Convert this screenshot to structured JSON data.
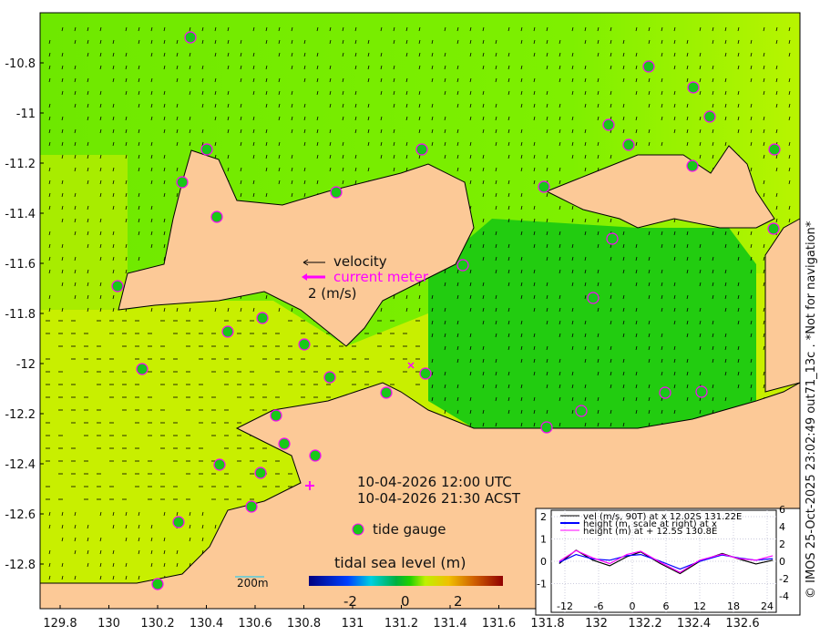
{
  "map": {
    "x_ticks": [
      "129.8",
      "130",
      "130.2",
      "130.4",
      "130.6",
      "130.8",
      "131",
      "131.2",
      "131.4",
      "131.6",
      "131.8",
      "132",
      "132.2",
      "132.4",
      "132.6"
    ],
    "y_ticks": [
      "-10.8",
      "-11",
      "-11.2",
      "-11.4",
      "-11.6",
      "-11.8",
      "-12",
      "-12.2",
      "-12.4",
      "-12.6",
      "-12.8"
    ],
    "colors": {
      "land": "#fcc997",
      "sea_high": "#c8f000",
      "sea_mid": "#6ee800",
      "sea_low": "#18c818",
      "marker": "#ff00ff"
    }
  },
  "legend": {
    "velocity": "velocity",
    "current_meter": "current meter",
    "scale": "2 (m/s)",
    "tide_gauge": "tide gauge",
    "scale_bar": "200m"
  },
  "timestamps": {
    "utc": "10-04-2026 12:00 UTC",
    "local": "10-04-2026 21:30 ACST"
  },
  "colorbar": {
    "title": "tidal sea level (m)",
    "ticks": [
      "-2",
      "0",
      "2"
    ],
    "range": [
      -3.6,
      3.6
    ]
  },
  "credit": "© IMOS 25-Oct-2025 23:02:49 out71_13c . *Not for navigation*",
  "chart_data": {
    "type": "line",
    "x_ticks": [
      "-12",
      "-6",
      "0",
      "6",
      "12",
      "18",
      "24"
    ],
    "y_left_ticks": [
      "2",
      "1",
      "0",
      "-1"
    ],
    "y_right_ticks": [
      "6",
      "4",
      "2",
      "0",
      "-2",
      "-4"
    ],
    "xlim": [
      -13.5,
      26
    ],
    "ylim": [
      -1.5,
      2.3
    ],
    "series": [
      {
        "name": "vel (m/s, 90T) at x 12.02S 131.22E",
        "color": "#000000",
        "x": [
          -13,
          -10,
          -7,
          -4,
          -1,
          1.5,
          5,
          8.5,
          12,
          16,
          19,
          22,
          25
        ],
        "y": [
          -0.1,
          0.5,
          0.05,
          -0.2,
          0.2,
          0.42,
          -0.1,
          -0.55,
          0.0,
          0.35,
          0.1,
          -0.12,
          0.05
        ]
      },
      {
        "name": "height (m, scale at right) at x",
        "color": "#0000ff",
        "x": [
          -13,
          -10,
          -7,
          -4,
          -1,
          1.5,
          5,
          8.5,
          12,
          16,
          19,
          22,
          25
        ],
        "y": [
          -0.05,
          0.3,
          0.1,
          0.05,
          0.25,
          0.3,
          0.0,
          -0.35,
          0.0,
          0.28,
          0.15,
          0.05,
          0.12
        ]
      },
      {
        "name": "height (m) at + 12.5S 130.8E",
        "color": "#ff00ff",
        "x": [
          -13,
          -10,
          -7,
          -4,
          -1,
          1.5,
          5,
          8.5,
          12,
          16,
          19,
          22,
          25
        ],
        "y": [
          0.0,
          0.48,
          0.15,
          -0.1,
          0.3,
          0.45,
          -0.05,
          -0.5,
          0.05,
          0.32,
          0.12,
          0.05,
          0.25
        ]
      }
    ]
  }
}
